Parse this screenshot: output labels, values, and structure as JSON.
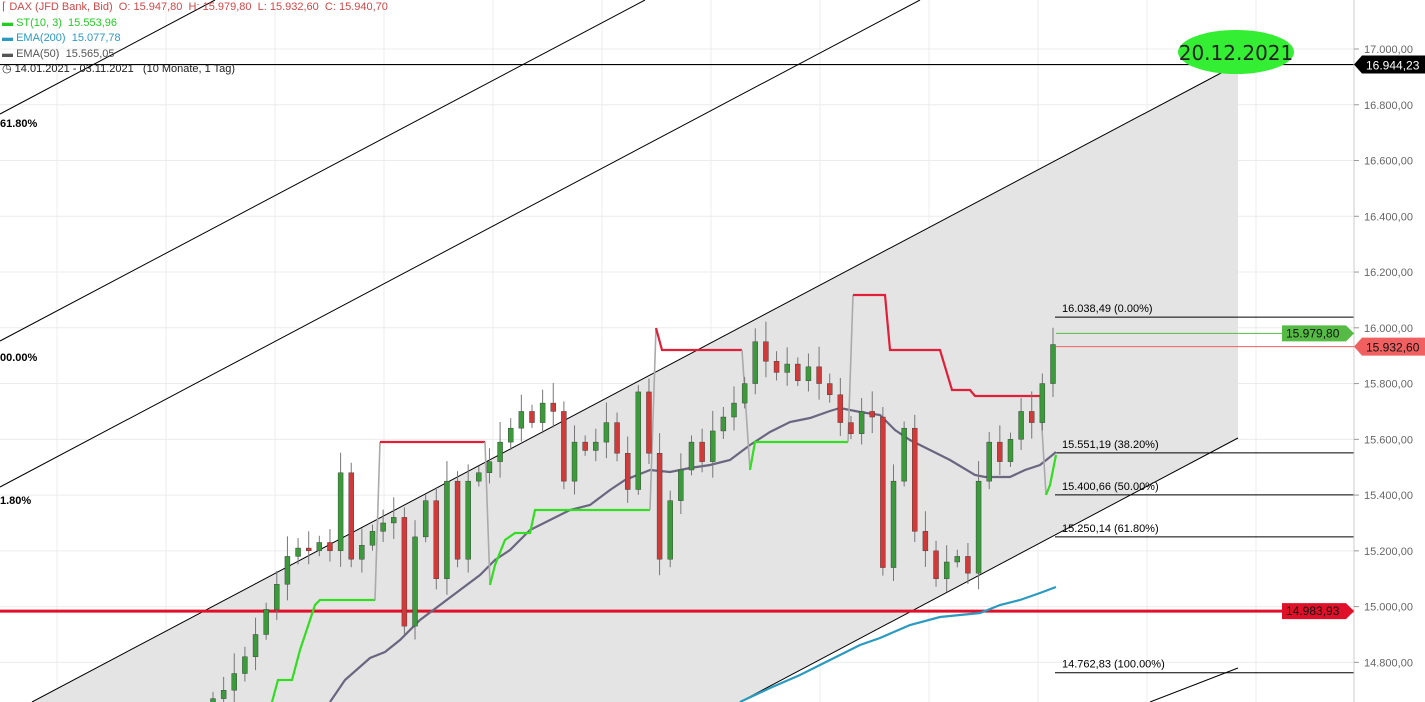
{
  "legend": {
    "instrument": "DAX (JFD Bank, Bid)",
    "ohlc": "O: 15.947,80  H: 15.979,80  L: 15.932,60  C: 15.940,70",
    "st": {
      "label": "ST(10, 3)",
      "value": "15.553,96"
    },
    "ema200": {
      "label": "EMA(200)",
      "value": "15.077,78"
    },
    "ema50": {
      "label": "EMA(50)",
      "value": "15.565,05"
    },
    "range": "14.01.2021 - 03.11.2021   (10 Monate, 1 Tag)"
  },
  "colors": {
    "up": "#3c9a3c",
    "down": "#d23a3a",
    "st_up": "#33dd22",
    "st_down": "#e0203a",
    "ema50": "#6a6680",
    "ema200": "#2a9ac0",
    "support": "#e0102a",
    "channel_fill": "#e4e4e4",
    "ellipse": "#33ee33"
  },
  "chart_data": {
    "type": "candlestick",
    "ylim": [
      14700,
      17150
    ],
    "y_ticks": [
      {
        "value": 17000,
        "label": "17.000,00"
      },
      {
        "value": 16800,
        "label": "16.800,00"
      },
      {
        "value": 16600,
        "label": "16.600,00"
      },
      {
        "value": 16400,
        "label": "16.400,00"
      },
      {
        "value": 16200,
        "label": "16.200,00"
      },
      {
        "value": 16000,
        "label": "16.000,00"
      },
      {
        "value": 15800,
        "label": "15.800,00"
      },
      {
        "value": 15600,
        "label": "15.600,00"
      },
      {
        "value": 15400,
        "label": "15.400,00"
      },
      {
        "value": 15200,
        "label": "15.200,00"
      },
      {
        "value": 15000,
        "label": "15.000,00"
      },
      {
        "value": 14800,
        "label": "14.800,00"
      }
    ],
    "closes": [
      14670,
      14700,
      14760,
      14820,
      14900,
      14990,
      15080,
      15180,
      15210,
      15200,
      15230,
      15200,
      15480,
      15170,
      15220,
      15270,
      15300,
      15320,
      14930,
      15250,
      15380,
      15100,
      15450,
      15170,
      15450,
      15480,
      15520,
      15590,
      15640,
      15700,
      15660,
      15730,
      15700,
      15450,
      15590,
      15560,
      15590,
      15660,
      15550,
      15420,
      15770,
      15550,
      15170,
      15380,
      15490,
      15590,
      15520,
      15630,
      15680,
      15730,
      15800,
      15950,
      15880,
      15840,
      15870,
      15810,
      15860,
      15800,
      15760,
      15660,
      15620,
      15700,
      15680,
      15140,
      15450,
      15640,
      15270,
      15200,
      15100,
      15160,
      15180,
      15120,
      15450,
      15590,
      15520,
      15600,
      15700,
      15660,
      15800,
      15940
    ],
    "horizontal_levels": [
      {
        "value": 16944.23,
        "label": "16.944,23",
        "color": "#000000"
      },
      {
        "value": 14983.93,
        "label": "14.983,93",
        "color": "#e0102a"
      }
    ],
    "price_tags": [
      {
        "value": 15979.8,
        "label": "15.979,80",
        "color": "#55bb44"
      },
      {
        "value": 15932.6,
        "label": "15.932,60",
        "color": "#f06060"
      }
    ],
    "fibonacci": [
      {
        "value": 16038.49,
        "label": "16.038,49 (0.00%)"
      },
      {
        "value": 15551.19,
        "label": "15.551,19 (38.20%)"
      },
      {
        "value": 15400.66,
        "label": "15.400,66 (50.00%)"
      },
      {
        "value": 15250.14,
        "label": "15.250,14 (61.80%)"
      },
      {
        "value": 14762.83,
        "label": "14.762,83 (100.00%)"
      }
    ],
    "channel_labels": [
      "61.80%",
      "00.00%",
      "1.80%"
    ],
    "annotation": "20.12.2021"
  }
}
